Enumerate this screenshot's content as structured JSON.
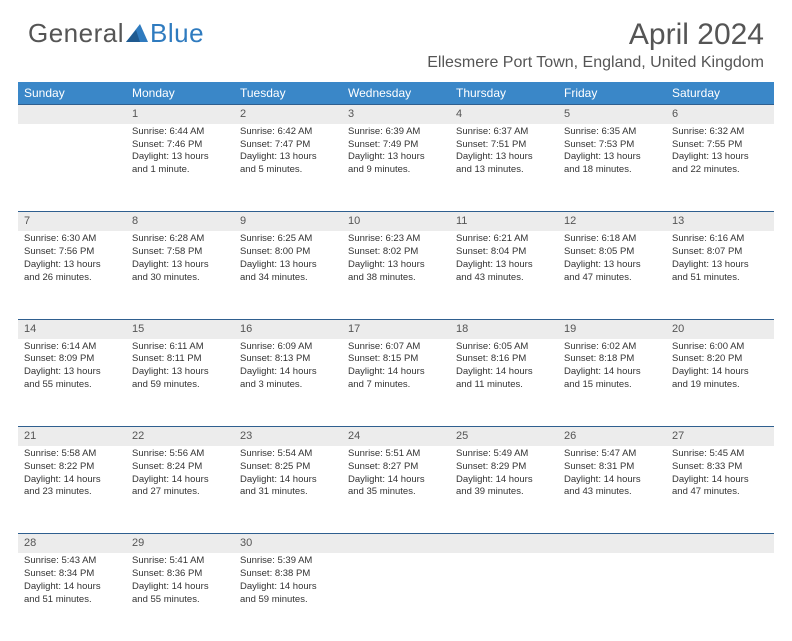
{
  "brand": {
    "part1": "General",
    "part2": "Blue"
  },
  "title": "April 2024",
  "location": "Ellesmere Port Town, England, United Kingdom",
  "colors": {
    "header_bg": "#3a87c8",
    "header_text": "#ffffff",
    "daynum_bg": "#ececec",
    "daynum_border": "#2f5f8f",
    "text": "#333333",
    "title_text": "#555555"
  },
  "day_headers": [
    "Sunday",
    "Monday",
    "Tuesday",
    "Wednesday",
    "Thursday",
    "Friday",
    "Saturday"
  ],
  "weeks": [
    {
      "nums": [
        "",
        "1",
        "2",
        "3",
        "4",
        "5",
        "6"
      ],
      "cells": [
        null,
        {
          "sunrise": "Sunrise: 6:44 AM",
          "sunset": "Sunset: 7:46 PM",
          "day1": "Daylight: 13 hours",
          "day2": "and 1 minute."
        },
        {
          "sunrise": "Sunrise: 6:42 AM",
          "sunset": "Sunset: 7:47 PM",
          "day1": "Daylight: 13 hours",
          "day2": "and 5 minutes."
        },
        {
          "sunrise": "Sunrise: 6:39 AM",
          "sunset": "Sunset: 7:49 PM",
          "day1": "Daylight: 13 hours",
          "day2": "and 9 minutes."
        },
        {
          "sunrise": "Sunrise: 6:37 AM",
          "sunset": "Sunset: 7:51 PM",
          "day1": "Daylight: 13 hours",
          "day2": "and 13 minutes."
        },
        {
          "sunrise": "Sunrise: 6:35 AM",
          "sunset": "Sunset: 7:53 PM",
          "day1": "Daylight: 13 hours",
          "day2": "and 18 minutes."
        },
        {
          "sunrise": "Sunrise: 6:32 AM",
          "sunset": "Sunset: 7:55 PM",
          "day1": "Daylight: 13 hours",
          "day2": "and 22 minutes."
        }
      ]
    },
    {
      "nums": [
        "7",
        "8",
        "9",
        "10",
        "11",
        "12",
        "13"
      ],
      "cells": [
        {
          "sunrise": "Sunrise: 6:30 AM",
          "sunset": "Sunset: 7:56 PM",
          "day1": "Daylight: 13 hours",
          "day2": "and 26 minutes."
        },
        {
          "sunrise": "Sunrise: 6:28 AM",
          "sunset": "Sunset: 7:58 PM",
          "day1": "Daylight: 13 hours",
          "day2": "and 30 minutes."
        },
        {
          "sunrise": "Sunrise: 6:25 AM",
          "sunset": "Sunset: 8:00 PM",
          "day1": "Daylight: 13 hours",
          "day2": "and 34 minutes."
        },
        {
          "sunrise": "Sunrise: 6:23 AM",
          "sunset": "Sunset: 8:02 PM",
          "day1": "Daylight: 13 hours",
          "day2": "and 38 minutes."
        },
        {
          "sunrise": "Sunrise: 6:21 AM",
          "sunset": "Sunset: 8:04 PM",
          "day1": "Daylight: 13 hours",
          "day2": "and 43 minutes."
        },
        {
          "sunrise": "Sunrise: 6:18 AM",
          "sunset": "Sunset: 8:05 PM",
          "day1": "Daylight: 13 hours",
          "day2": "and 47 minutes."
        },
        {
          "sunrise": "Sunrise: 6:16 AM",
          "sunset": "Sunset: 8:07 PM",
          "day1": "Daylight: 13 hours",
          "day2": "and 51 minutes."
        }
      ]
    },
    {
      "nums": [
        "14",
        "15",
        "16",
        "17",
        "18",
        "19",
        "20"
      ],
      "cells": [
        {
          "sunrise": "Sunrise: 6:14 AM",
          "sunset": "Sunset: 8:09 PM",
          "day1": "Daylight: 13 hours",
          "day2": "and 55 minutes."
        },
        {
          "sunrise": "Sunrise: 6:11 AM",
          "sunset": "Sunset: 8:11 PM",
          "day1": "Daylight: 13 hours",
          "day2": "and 59 minutes."
        },
        {
          "sunrise": "Sunrise: 6:09 AM",
          "sunset": "Sunset: 8:13 PM",
          "day1": "Daylight: 14 hours",
          "day2": "and 3 minutes."
        },
        {
          "sunrise": "Sunrise: 6:07 AM",
          "sunset": "Sunset: 8:15 PM",
          "day1": "Daylight: 14 hours",
          "day2": "and 7 minutes."
        },
        {
          "sunrise": "Sunrise: 6:05 AM",
          "sunset": "Sunset: 8:16 PM",
          "day1": "Daylight: 14 hours",
          "day2": "and 11 minutes."
        },
        {
          "sunrise": "Sunrise: 6:02 AM",
          "sunset": "Sunset: 8:18 PM",
          "day1": "Daylight: 14 hours",
          "day2": "and 15 minutes."
        },
        {
          "sunrise": "Sunrise: 6:00 AM",
          "sunset": "Sunset: 8:20 PM",
          "day1": "Daylight: 14 hours",
          "day2": "and 19 minutes."
        }
      ]
    },
    {
      "nums": [
        "21",
        "22",
        "23",
        "24",
        "25",
        "26",
        "27"
      ],
      "cells": [
        {
          "sunrise": "Sunrise: 5:58 AM",
          "sunset": "Sunset: 8:22 PM",
          "day1": "Daylight: 14 hours",
          "day2": "and 23 minutes."
        },
        {
          "sunrise": "Sunrise: 5:56 AM",
          "sunset": "Sunset: 8:24 PM",
          "day1": "Daylight: 14 hours",
          "day2": "and 27 minutes."
        },
        {
          "sunrise": "Sunrise: 5:54 AM",
          "sunset": "Sunset: 8:25 PM",
          "day1": "Daylight: 14 hours",
          "day2": "and 31 minutes."
        },
        {
          "sunrise": "Sunrise: 5:51 AM",
          "sunset": "Sunset: 8:27 PM",
          "day1": "Daylight: 14 hours",
          "day2": "and 35 minutes."
        },
        {
          "sunrise": "Sunrise: 5:49 AM",
          "sunset": "Sunset: 8:29 PM",
          "day1": "Daylight: 14 hours",
          "day2": "and 39 minutes."
        },
        {
          "sunrise": "Sunrise: 5:47 AM",
          "sunset": "Sunset: 8:31 PM",
          "day1": "Daylight: 14 hours",
          "day2": "and 43 minutes."
        },
        {
          "sunrise": "Sunrise: 5:45 AM",
          "sunset": "Sunset: 8:33 PM",
          "day1": "Daylight: 14 hours",
          "day2": "and 47 minutes."
        }
      ]
    },
    {
      "nums": [
        "28",
        "29",
        "30",
        "",
        "",
        "",
        ""
      ],
      "cells": [
        {
          "sunrise": "Sunrise: 5:43 AM",
          "sunset": "Sunset: 8:34 PM",
          "day1": "Daylight: 14 hours",
          "day2": "and 51 minutes."
        },
        {
          "sunrise": "Sunrise: 5:41 AM",
          "sunset": "Sunset: 8:36 PM",
          "day1": "Daylight: 14 hours",
          "day2": "and 55 minutes."
        },
        {
          "sunrise": "Sunrise: 5:39 AM",
          "sunset": "Sunset: 8:38 PM",
          "day1": "Daylight: 14 hours",
          "day2": "and 59 minutes."
        },
        null,
        null,
        null,
        null
      ]
    }
  ]
}
